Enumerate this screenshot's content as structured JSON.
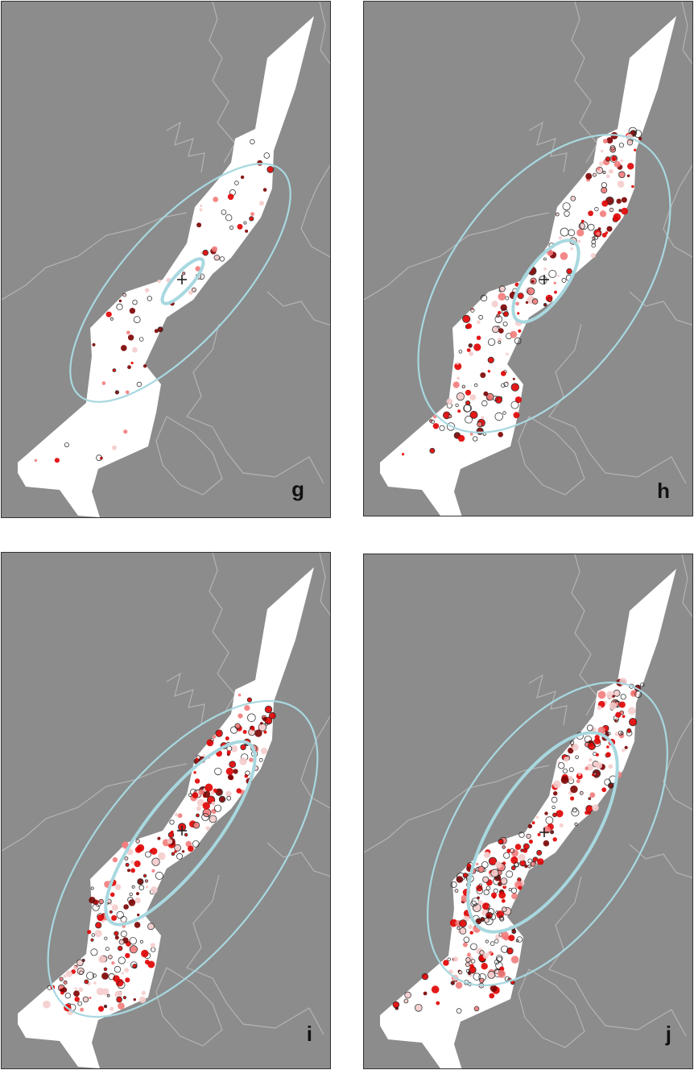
{
  "figure": {
    "panels": [
      {
        "label": "g",
        "seed": 11,
        "density": 1
      },
      {
        "label": "h",
        "seed": 23,
        "density": 3
      },
      {
        "label": "i",
        "seed": 37,
        "density": 4
      },
      {
        "label": "j",
        "seed": 53,
        "density": 5
      }
    ]
  },
  "colors": {
    "sea": "#8c8c8c",
    "land_outline": "#b4b4b4",
    "region": "#ffffff",
    "ellipse": "#a8d8e0",
    "point_strong": "#e00000",
    "point_mid": "#f27b7b",
    "point_light": "#f5cccc",
    "point_dark": "#7a0000",
    "point_outline_black": "#222222",
    "epicentre_marker": "#222222"
  }
}
